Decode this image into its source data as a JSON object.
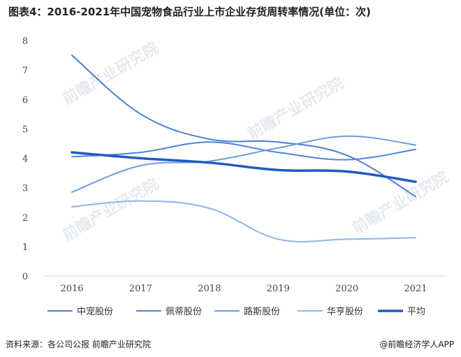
{
  "title": "图表4：2016-2021年中国宠物食品行业上市企业存货周转率情况(单位：次)",
  "footer": {
    "source": "资料来源：各公司公报 前瞻产业研究院",
    "brand": "@前瞻经济学人APP"
  },
  "watermark": "前瞻产业研究院",
  "chart_data": {
    "type": "line",
    "title": "图表4：2016-2021年中国宠物食品行业上市企业存货周转率情况(单位：次)",
    "x": [
      "2016",
      "2017",
      "2018",
      "2019",
      "2020",
      "2021"
    ],
    "ylim": [
      0,
      8
    ],
    "yticks": [
      0,
      1,
      2,
      3,
      4,
      5,
      6,
      7,
      8
    ],
    "grid": false,
    "legend": "bottom",
    "series": [
      {
        "name": "中宠股份",
        "values": [
          7.5,
          5.5,
          4.65,
          4.55,
          4.1,
          2.7
        ],
        "color": "#4a7fd0",
        "width": 2
      },
      {
        "name": "佩蒂股份",
        "values": [
          4.05,
          4.2,
          4.55,
          4.2,
          3.95,
          4.3
        ],
        "color": "#4c86d8",
        "width": 2
      },
      {
        "name": "路斯股份",
        "values": [
          2.85,
          3.75,
          3.9,
          4.35,
          4.75,
          4.45
        ],
        "color": "#6c9de0",
        "width": 2
      },
      {
        "name": "华亨股份",
        "values": [
          2.35,
          2.55,
          2.3,
          1.25,
          1.25,
          1.3
        ],
        "color": "#8db7ea",
        "width": 2
      },
      {
        "name": "平均",
        "values": [
          4.2,
          4.0,
          3.85,
          3.6,
          3.55,
          3.2
        ],
        "color": "#1f5bc0",
        "width": 3.5
      }
    ]
  }
}
